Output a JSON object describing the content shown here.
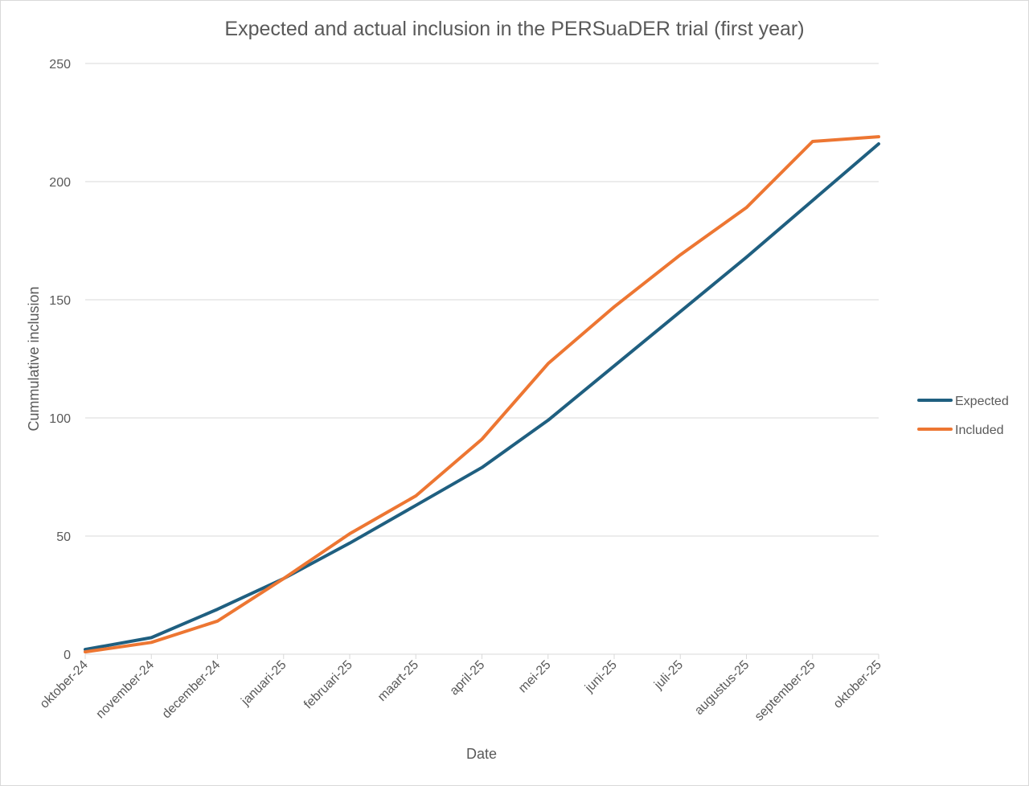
{
  "chart_data": {
    "type": "line",
    "title": "Expected and actual inclusion in the PERSuaDER trial (first year)",
    "xlabel": "Date",
    "ylabel": "Cummulative inclusion",
    "categories": [
      "oktober-24",
      "november-24",
      "december-24",
      "januari-25",
      "februari-25",
      "maart-25",
      "april-25",
      "mei-25",
      "juni-25",
      "juli-25",
      "augustus-25",
      "september-25",
      "oktober-25"
    ],
    "ylim": [
      0,
      250
    ],
    "yticks": [
      0,
      50,
      100,
      150,
      200,
      250
    ],
    "grid": true,
    "legend_position": "right",
    "series": [
      {
        "name": "Expected",
        "color": "#1f5f80",
        "values": [
          2,
          7,
          19,
          32,
          47,
          63,
          79,
          99,
          122,
          145,
          168,
          192,
          216
        ]
      },
      {
        "name": "Included",
        "color": "#ed7632",
        "values": [
          1,
          5,
          14,
          32,
          51,
          67,
          91,
          123,
          147,
          169,
          189,
          217,
          219
        ]
      }
    ]
  }
}
